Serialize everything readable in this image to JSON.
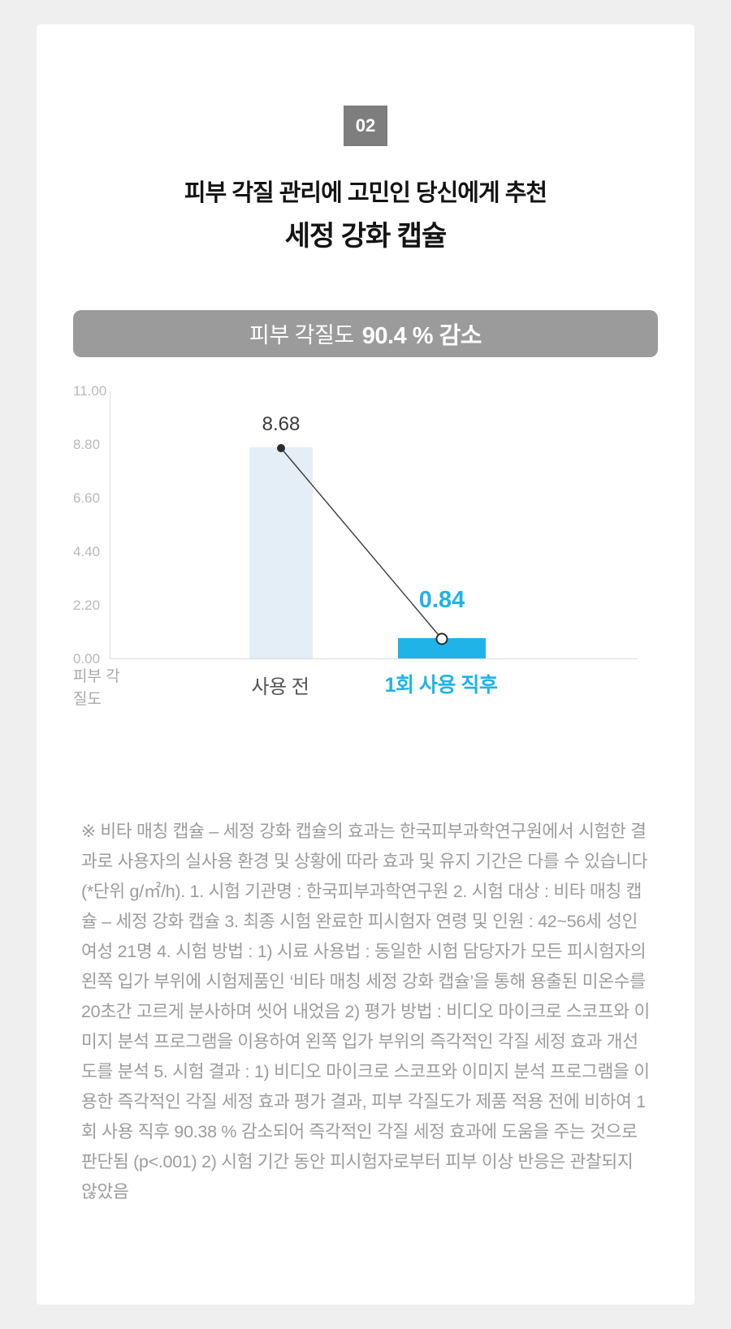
{
  "section": {
    "number": "02",
    "title": "피부 각질 관리에 고민인 당신에게 추천",
    "subtitle": "세정 강화 캡슐"
  },
  "banner": {
    "prefix": "피부 각질도",
    "highlight": "90.4 % 감소"
  },
  "chart_data": {
    "type": "bar",
    "title": "피부 각질도 90.4 % 감소",
    "categories": [
      "사용 전",
      "1회 사용 직후"
    ],
    "values": [
      8.68,
      0.84
    ],
    "value_labels": [
      "8.68",
      "0.84"
    ],
    "unit": "g/㎡/h",
    "ylabel": "피부 각질도",
    "yticks": [
      "11.00",
      "8.80",
      "6.60",
      "4.40",
      "2.20",
      "0.00"
    ],
    "ylim": [
      0,
      11
    ],
    "grid": false,
    "legend": "none",
    "annotations": [
      "trend line connecting 8.68 (filled dot) down to 0.84 (open dot)"
    ],
    "colors": {
      "bars": [
        "#e4eef6",
        "#1fb3e8"
      ],
      "accent": "#1fb3e8",
      "banner_bg": "#9b9b9b",
      "badge_bg": "#7e7e7e"
    }
  },
  "disclaimer": "※ 비타 매칭 캡슐 – 세정 강화 캡슐의 효과는 한국피부과학연구원에서 시험한 결과로 사용자의 실사용 환경 및 상황에 따라 효과 및 유지 기간은 다를 수 있습니다 (*단위 g/㎡/h). 1. 시험 기관명 : 한국피부과학연구원 2. 시험 대상 : 비타 매칭 캡슐 – 세정 강화 캡슐 3. 최종 시험 완료한 피시험자 연령 및 인원 : 42~56세 성인 여성 21명 4. 시험 방법 : 1) 시료 사용법 : 동일한 시험 담당자가 모든 피시험자의 왼쪽 입가 부위에 시험제품인 ‘비타 매칭 세정 강화 캡슐’을 통해 용출된 미온수를 20초간 고르게 분사하며 씻어 내었음 2) 평가 방법 : 비디오 마이크로 스코프와 이미지 분석 프로그램을 이용하여 왼쪽 입가 부위의 즉각적인 각질 세정 효과 개선도를 분석 5. 시험 결과 : 1) 비디오 마이크로 스코프와 이미지 분석 프로그램을 이용한 즉각적인 각질 세정 효과 평가 결과, 피부 각질도가 제품 적용 전에 비하여 1회 사용 직후 90.38 % 감소되어 즉각적인 각질 세정 효과에 도움을 주는 것으로 판단됨 (p<.001) 2) 시험 기간 동안 피시험자로부터 피부 이상 반응은 관찰되지 않았음"
}
